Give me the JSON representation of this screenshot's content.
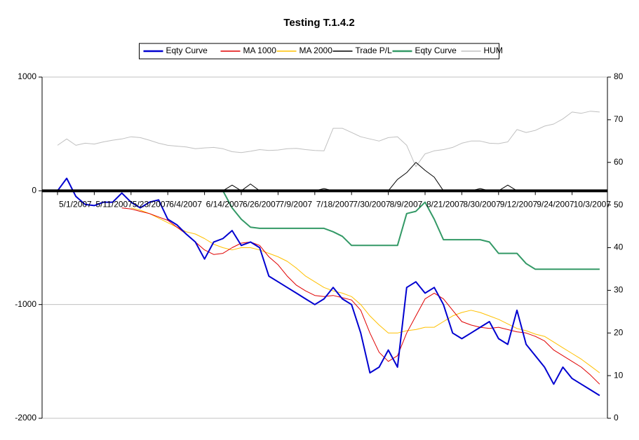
{
  "chart_data": {
    "type": "line",
    "title": "Testing T.1.4.2",
    "categories": [
      "5/1/2007",
      null,
      null,
      null,
      "5/11/2007",
      null,
      null,
      null,
      "5/23/2007",
      null,
      null,
      null,
      "6/4/2007",
      null,
      null,
      null,
      "6/14/2007",
      null,
      null,
      null,
      "6/26/2007",
      null,
      null,
      null,
      "7/9/2007",
      null,
      null,
      null,
      "7/18/2007",
      null,
      null,
      null,
      "7/30/2007",
      null,
      null,
      null,
      "8/9/2007",
      null,
      null,
      null,
      "8/21/2007",
      null,
      null,
      null,
      "8/30/2007",
      null,
      null,
      null,
      "9/12/2007",
      null,
      null,
      null,
      "9/24/2007",
      null,
      null,
      null,
      "10/3/2007",
      null,
      null,
      null
    ],
    "series": [
      {
        "name": "Eqty Curve",
        "color": "#0000d0",
        "width": 2,
        "values": [
          0,
          110,
          -50,
          -120,
          -130,
          -100,
          -100,
          -20,
          -100,
          -150,
          -100,
          -80,
          -250,
          -300,
          -380,
          -450,
          -600,
          -450,
          -420,
          -350,
          -480,
          -450,
          -500,
          -750,
          -800,
          -850,
          -900,
          -950,
          -1000,
          -950,
          -850,
          -950,
          -1000,
          -1250,
          -1600,
          -1550,
          -1400,
          -1550,
          -850,
          -800,
          -900,
          -850,
          -1000,
          -1250,
          -1300,
          -1250,
          -1200,
          -1150,
          -1300,
          -1350,
          -1050,
          -1350,
          -1450,
          -1550,
          -1700,
          -1550,
          -1650,
          -1700,
          -1750,
          -1800
        ]
      },
      {
        "name": "MA 1000",
        "color": "#e00000",
        "width": 1,
        "values": [
          null,
          null,
          null,
          null,
          null,
          null,
          null,
          -150,
          -160,
          -180,
          -200,
          -230,
          -260,
          -320,
          -380,
          -450,
          -520,
          -560,
          -550,
          -500,
          -460,
          -450,
          -480,
          -580,
          -650,
          -750,
          -830,
          -880,
          -920,
          -930,
          -920,
          -940,
          -960,
          -1050,
          -1250,
          -1420,
          -1500,
          -1450,
          -1250,
          -1100,
          -950,
          -900,
          -950,
          -1050,
          -1150,
          -1180,
          -1200,
          -1210,
          -1200,
          -1220,
          -1240,
          -1250,
          -1280,
          -1320,
          -1400,
          -1450,
          -1500,
          -1550,
          -1620,
          -1700
        ]
      },
      {
        "name": "MA 2000",
        "color": "#ffc000",
        "width": 1,
        "values": [
          null,
          null,
          null,
          null,
          null,
          null,
          null,
          null,
          -150,
          -170,
          -200,
          -240,
          -280,
          -320,
          -360,
          -380,
          -420,
          -470,
          -500,
          -520,
          -500,
          -500,
          -520,
          -550,
          -580,
          -620,
          -680,
          -750,
          -800,
          -850,
          -880,
          -900,
          -930,
          -1000,
          -1100,
          -1180,
          -1250,
          -1250,
          -1230,
          -1220,
          -1200,
          -1200,
          -1150,
          -1100,
          -1070,
          -1050,
          -1070,
          -1100,
          -1130,
          -1170,
          -1210,
          -1230,
          -1260,
          -1280,
          -1330,
          -1380,
          -1430,
          -1480,
          -1540,
          -1600
        ]
      },
      {
        "name": "Trade P/L",
        "color": "#000000",
        "width": 1,
        "values": [
          0,
          0,
          0,
          0,
          0,
          0,
          0,
          0,
          0,
          0,
          0,
          0,
          0,
          0,
          0,
          0,
          0,
          0,
          0,
          50,
          0,
          60,
          0,
          0,
          0,
          0,
          0,
          0,
          0,
          20,
          0,
          0,
          0,
          0,
          0,
          0,
          0,
          100,
          160,
          250,
          180,
          120,
          0,
          0,
          0,
          0,
          20,
          0,
          0,
          50,
          0,
          0,
          0,
          0,
          0,
          0,
          0,
          0,
          0,
          0
        ]
      },
      {
        "name": "Eqty Curve",
        "color": "#339966",
        "width": 2,
        "values": [
          null,
          null,
          null,
          null,
          null,
          null,
          null,
          0,
          0,
          0,
          0,
          0,
          0,
          0,
          0,
          0,
          0,
          0,
          0,
          -150,
          -250,
          -320,
          -330,
          -330,
          -330,
          -330,
          -330,
          -330,
          -330,
          -330,
          -360,
          -400,
          -480,
          -480,
          -480,
          -480,
          -480,
          -480,
          -200,
          -180,
          -100,
          -250,
          -430,
          -430,
          -430,
          -430,
          -430,
          -450,
          -550,
          -550,
          -550,
          -640,
          -690,
          -690,
          -690,
          -690,
          -690,
          -690,
          -690,
          -690
        ]
      },
      {
        "name": "HUM",
        "color": "#c0c0c0",
        "width": 1,
        "axis": "y2",
        "values": [
          64,
          65.5,
          64,
          64.5,
          64.3,
          64.8,
          65.2,
          65.5,
          66,
          65.8,
          65.2,
          64.5,
          64,
          63.8,
          63.6,
          63.2,
          63.4,
          63.5,
          63.2,
          62.5,
          62.3,
          62.6,
          63,
          62.8,
          62.9,
          63.2,
          63.3,
          63,
          62.8,
          62.7,
          68,
          68,
          67,
          66,
          65.5,
          65,
          65.8,
          66,
          64,
          59,
          62,
          62.7,
          63,
          63.5,
          64.5,
          65,
          65,
          64.5,
          64.4,
          64.8,
          67.7,
          67,
          67.5,
          68.5,
          69,
          70.2,
          71.8,
          71.5,
          72,
          71.8
        ]
      }
    ],
    "ylim": [
      -2000,
      1000
    ],
    "yticks": [
      -2000,
      -1000,
      0,
      1000
    ],
    "y2lim": [
      0,
      80
    ],
    "y2ticks": [
      0,
      10,
      20,
      30,
      40,
      50,
      60,
      70,
      80
    ],
    "grid": true,
    "legend": "top"
  }
}
